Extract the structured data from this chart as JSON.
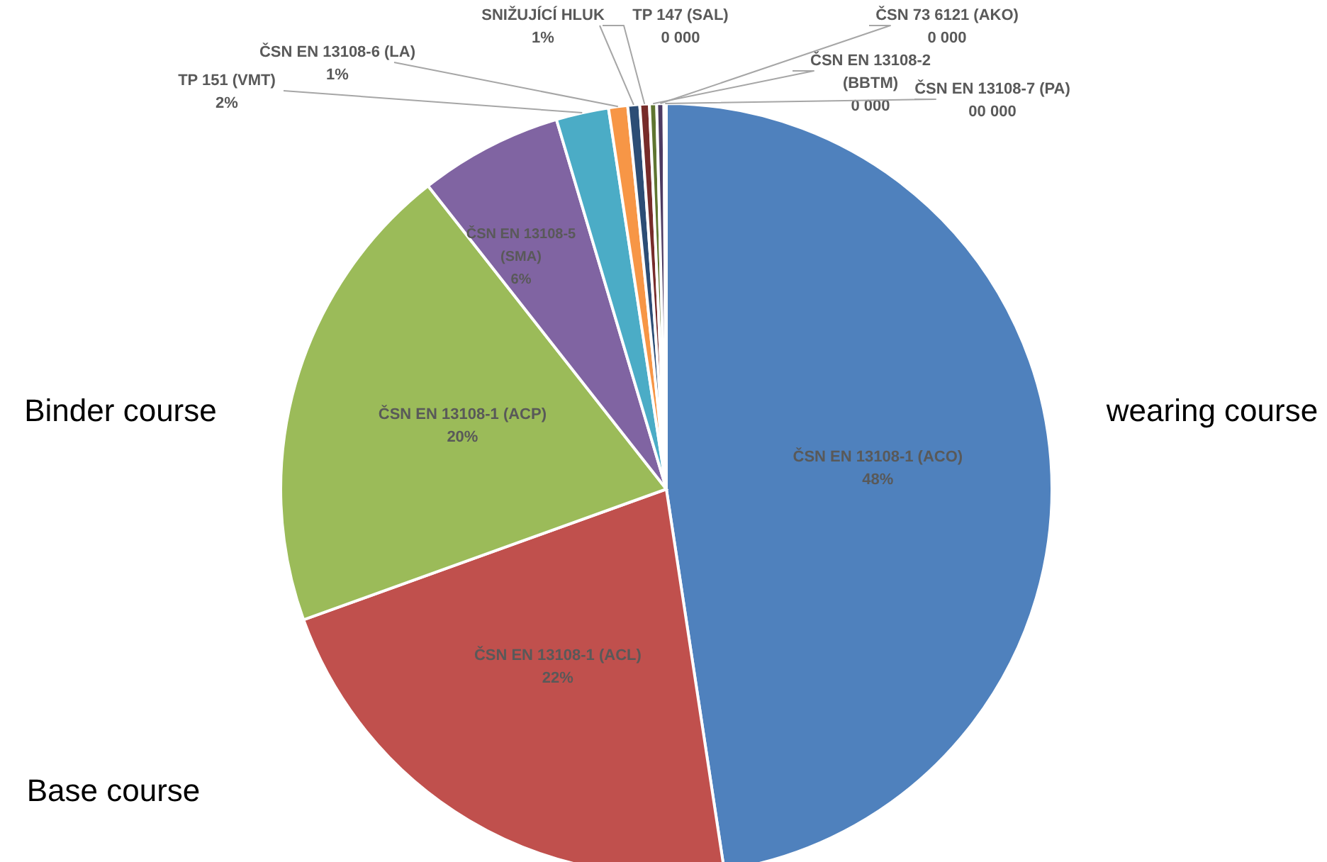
{
  "chart_data": {
    "type": "pie",
    "categories": [
      "ČSN EN 13108-1 (ACO)",
      "ČSN EN 13108-1 (ACL)",
      "ČSN EN 13108-1 (ACP)",
      "ČSN EN 13108-5 (SMA)",
      "TP 151 (VMT)",
      "ČSN EN 13108-6 (LA)",
      "SNIŽUJÍCÍ HLUK",
      "TP 147 (SAL)",
      "ČSN EN 13108-2 (BBTM)",
      "ČSN 73 6121 (AKO)",
      "ČSN EN 13108-7 (PA)"
    ],
    "values": [
      47.6,
      21.9,
      19.9,
      6,
      2.2,
      0.8,
      0.5,
      0.4,
      0.3,
      0.3,
      0.1
    ],
    "value_labels": [
      "48%",
      "22%",
      "20%",
      "6%",
      "2%",
      "1%",
      "1%",
      "0 000",
      "0 000",
      "0 000",
      "00 000"
    ],
    "colors": [
      "#4f81bd",
      "#c0504d",
      "#9bbb59",
      "#8064a2",
      "#4bacc6",
      "#f79646",
      "#2c4d75",
      "#772c2a",
      "#5f7530",
      "#4d3b62",
      "#276a7c"
    ],
    "annotations": [
      "wearing course",
      "Binder course",
      "Base course"
    ],
    "legend": false
  }
}
